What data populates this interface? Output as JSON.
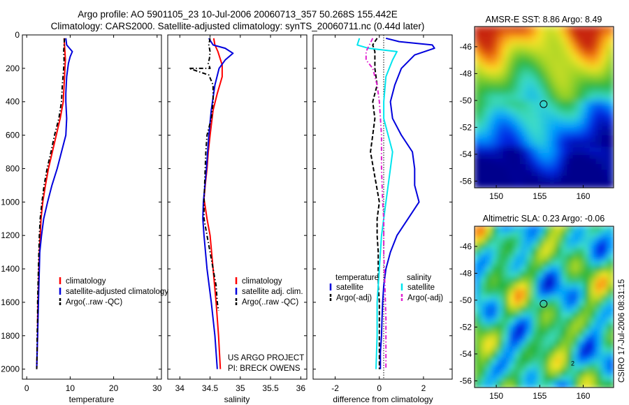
{
  "header": {
    "title_line1": "Argo profile: AO 5901105_23 10-Jul-2006 20060713_357 50.268S 155.442E",
    "title_line2": "Climatology: CARS2000. Satellite-adjusted climatology: synTS_20060711.nc (0.44d later)"
  },
  "colors": {
    "climatology": "#ff0000",
    "satellite": "#0000dd",
    "argo": "#000000",
    "sat_salinity": "#00e5ee",
    "argo_salinity": "#e020d0"
  },
  "credits": {
    "project": "US ARGO PROJECT",
    "pi": "PI: BRECK OWENS",
    "stamp": "CSIRO 17-Jul-2006 08:31:15"
  },
  "chart_data": [
    {
      "type": "line",
      "name": "temperature-profile",
      "xlabel": "temperature",
      "xlim": [
        -1,
        31
      ],
      "ylim": [
        2060,
        0
      ],
      "xticks": [
        0,
        10,
        20,
        30
      ],
      "yticks": [
        0,
        200,
        400,
        600,
        800,
        1000,
        1200,
        1400,
        1600,
        1800,
        2000
      ],
      "legend": {
        "position": "bottom-left",
        "labels": [
          "climatology",
          "satellite-adjusted climatology",
          "Argo(..raw -QC)"
        ]
      },
      "series": [
        {
          "name": "climatology",
          "color": "#ff0000",
          "style": "solid",
          "points": [
            [
              8.6,
              20
            ],
            [
              8.7,
              60
            ],
            [
              8.8,
              100
            ],
            [
              8.9,
              150
            ],
            [
              8.8,
              200
            ],
            [
              8.6,
              300
            ],
            [
              8.4,
              400
            ],
            [
              7.7,
              500
            ],
            [
              6.8,
              600
            ],
            [
              5.9,
              700
            ],
            [
              5.0,
              800
            ],
            [
              4.3,
              900
            ],
            [
              3.7,
              1000
            ],
            [
              3.3,
              1100
            ],
            [
              3.1,
              1200
            ],
            [
              2.9,
              1300
            ],
            [
              2.8,
              1400
            ],
            [
              2.7,
              1500
            ],
            [
              2.6,
              1600
            ],
            [
              2.5,
              1700
            ],
            [
              2.5,
              1800
            ],
            [
              2.4,
              1900
            ],
            [
              2.3,
              2000
            ]
          ]
        },
        {
          "name": "satellite-adjusted climatology",
          "color": "#0000dd",
          "style": "solid",
          "points": [
            [
              9.0,
              20
            ],
            [
              9.2,
              60
            ],
            [
              10.5,
              100
            ],
            [
              10.0,
              130
            ],
            [
              9.6,
              170
            ],
            [
              9.2,
              250
            ],
            [
              9.0,
              350
            ],
            [
              9.0,
              400
            ],
            [
              9.2,
              500
            ],
            [
              9.0,
              600
            ],
            [
              8.0,
              700
            ],
            [
              7.0,
              800
            ],
            [
              5.8,
              900
            ],
            [
              4.8,
              1000
            ],
            [
              3.9,
              1100
            ],
            [
              3.4,
              1200
            ],
            [
              3.0,
              1300
            ],
            [
              2.9,
              1400
            ],
            [
              2.8,
              1500
            ],
            [
              2.7,
              1600
            ],
            [
              2.6,
              1700
            ],
            [
              2.5,
              1800
            ],
            [
              2.4,
              1900
            ],
            [
              2.3,
              2000
            ]
          ]
        },
        {
          "name": "Argo(..raw -QC)",
          "color": "#000000",
          "style": "dashdot",
          "points": [
            [
              8.7,
              20
            ],
            [
              8.6,
              60
            ],
            [
              8.5,
              100
            ],
            [
              8.6,
              150
            ],
            [
              8.5,
              200
            ],
            [
              8.2,
              300
            ],
            [
              8.0,
              400
            ],
            [
              7.4,
              500
            ],
            [
              6.4,
              600
            ],
            [
              5.6,
              700
            ],
            [
              4.7,
              800
            ],
            [
              4.0,
              900
            ],
            [
              3.5,
              1000
            ],
            [
              3.1,
              1100
            ],
            [
              2.9,
              1200
            ],
            [
              2.8,
              1300
            ],
            [
              2.7,
              1400
            ],
            [
              2.6,
              1500
            ],
            [
              2.5,
              1600
            ],
            [
              2.5,
              1700
            ],
            [
              2.4,
              1800
            ],
            [
              2.4,
              1900
            ],
            [
              2.3,
              2000
            ]
          ]
        }
      ]
    },
    {
      "type": "line",
      "name": "salinity-profile",
      "xlabel": "salinity",
      "xlim": [
        33.8,
        36.1
      ],
      "ylim": [
        2060,
        0
      ],
      "xticks": [
        34,
        34.5,
        35,
        35.5,
        36
      ],
      "legend": {
        "position": "bottom-left",
        "labels": [
          "climatology",
          "satellite adj. clim.",
          "Argo(..raw -QC)"
        ]
      },
      "series": [
        {
          "name": "climatology",
          "color": "#ff0000",
          "style": "solid",
          "points": [
            [
              34.56,
              20
            ],
            [
              34.58,
              60
            ],
            [
              34.63,
              100
            ],
            [
              34.7,
              180
            ],
            [
              34.7,
              250
            ],
            [
              34.62,
              350
            ],
            [
              34.55,
              450
            ],
            [
              34.5,
              600
            ],
            [
              34.47,
              700
            ],
            [
              34.45,
              800
            ],
            [
              34.42,
              900
            ],
            [
              34.4,
              980
            ],
            [
              34.45,
              1100
            ],
            [
              34.5,
              1200
            ],
            [
              34.55,
              1400
            ],
            [
              34.6,
              1600
            ],
            [
              34.64,
              1800
            ],
            [
              34.67,
              2000
            ]
          ]
        },
        {
          "name": "satellite adj. clim.",
          "color": "#0000dd",
          "style": "solid",
          "points": [
            [
              34.48,
              20
            ],
            [
              34.55,
              60
            ],
            [
              34.75,
              80
            ],
            [
              34.88,
              110
            ],
            [
              34.75,
              150
            ],
            [
              34.65,
              200
            ],
            [
              34.58,
              300
            ],
            [
              34.52,
              450
            ],
            [
              34.48,
              600
            ],
            [
              34.44,
              800
            ],
            [
              34.39,
              1000
            ],
            [
              34.38,
              1100
            ],
            [
              34.4,
              1200
            ],
            [
              34.45,
              1400
            ],
            [
              34.52,
              1600
            ],
            [
              34.58,
              1800
            ],
            [
              34.62,
              2000
            ]
          ]
        },
        {
          "name": "Argo(..raw -QC)",
          "color": "#000000",
          "style": "dashdot",
          "points": [
            [
              34.5,
              20
            ],
            [
              34.48,
              60
            ],
            [
              34.5,
              100
            ],
            [
              34.49,
              140
            ],
            [
              34.47,
              170
            ],
            [
              34.5,
              200
            ],
            [
              34.15,
              200
            ],
            [
              34.48,
              240
            ],
            [
              34.55,
              300
            ],
            [
              34.55,
              400
            ],
            [
              34.52,
              500
            ],
            [
              34.45,
              600
            ],
            [
              34.43,
              700
            ],
            [
              34.42,
              800
            ],
            [
              34.4,
              1000
            ],
            [
              34.4,
              1100
            ],
            [
              34.45,
              1200
            ],
            [
              34.5,
              1300
            ],
            [
              34.55,
              1400
            ],
            [
              34.6,
              1500
            ],
            [
              34.62,
              1600
            ],
            [
              34.64,
              1650
            ]
          ]
        }
      ]
    },
    {
      "type": "line",
      "name": "difference-profile",
      "xlabel": "difference from climatology",
      "xlim": [
        -3,
        3.3
      ],
      "ylim": [
        2060,
        0
      ],
      "xticks": [
        -2,
        0,
        2
      ],
      "legend": {
        "position": "bottom",
        "groups": [
          {
            "header": "temperature",
            "labels": [
              "satellite",
              "Argo(-adj)"
            ]
          },
          {
            "header": "salinity",
            "labels": [
              "satellite",
              "Argo(-adj)"
            ]
          }
        ]
      },
      "series": [
        {
          "name": "temperature satellite",
          "color": "#0000dd",
          "style": "solid",
          "points": [
            [
              0.3,
              20
            ],
            [
              0.9,
              40
            ],
            [
              2.4,
              60
            ],
            [
              2.5,
              80
            ],
            [
              1.6,
              120
            ],
            [
              1.0,
              200
            ],
            [
              0.7,
              300
            ],
            [
              0.5,
              400
            ],
            [
              0.6,
              500
            ],
            [
              1.0,
              600
            ],
            [
              1.5,
              700
            ],
            [
              1.6,
              800
            ],
            [
              1.6,
              900
            ],
            [
              1.8,
              1000
            ],
            [
              1.3,
              1100
            ],
            [
              0.8,
              1200
            ],
            [
              0.5,
              1300
            ],
            [
              0.3,
              1400
            ],
            [
              0.2,
              1500
            ],
            [
              0.15,
              1600
            ],
            [
              0.12,
              1700
            ],
            [
              0.1,
              1800
            ],
            [
              0.05,
              1900
            ],
            [
              0.05,
              2000
            ]
          ]
        },
        {
          "name": "temperature Argo(-adj)",
          "color": "#000000",
          "style": "dashed",
          "points": [
            [
              -0.1,
              20
            ],
            [
              -0.3,
              60
            ],
            [
              -0.2,
              100
            ],
            [
              -0.2,
              200
            ],
            [
              -0.1,
              300
            ],
            [
              -0.3,
              400
            ],
            [
              -0.2,
              500
            ],
            [
              -0.3,
              600
            ],
            [
              -0.4,
              700
            ],
            [
              -0.2,
              850
            ],
            [
              0.0,
              1000
            ],
            [
              -0.1,
              1100
            ],
            [
              -0.1,
              1200
            ],
            [
              -0.05,
              1300
            ],
            [
              -0.05,
              1500
            ],
            [
              0.0,
              1600
            ],
            [
              0.0,
              1800
            ],
            [
              0.0,
              2000
            ]
          ]
        },
        {
          "name": "salinity satellite",
          "color": "#00e5ee",
          "style": "solid",
          "points": [
            [
              -0.9,
              20
            ],
            [
              -1.0,
              60
            ],
            [
              -0.5,
              80
            ],
            [
              0.8,
              100
            ],
            [
              0.6,
              150
            ],
            [
              0.3,
              250
            ],
            [
              0.2,
              400
            ],
            [
              0.2,
              500
            ],
            [
              0.4,
              600
            ],
            [
              0.6,
              700
            ],
            [
              0.5,
              800
            ],
            [
              0.3,
              1000
            ],
            [
              0.1,
              1200
            ],
            [
              0.0,
              1400
            ],
            [
              -0.1,
              1600
            ],
            [
              -0.1,
              1800
            ],
            [
              -0.15,
              2000
            ]
          ]
        },
        {
          "name": "salinity Argo(-adj)",
          "color": "#e020d0",
          "style": "dashdot",
          "points": [
            [
              -0.3,
              20
            ],
            [
              -0.6,
              100
            ],
            [
              -0.6,
              150
            ],
            [
              -0.3,
              200
            ],
            [
              -0.1,
              300
            ],
            [
              0.0,
              400
            ],
            [
              0.1,
              600
            ],
            [
              0.1,
              800
            ],
            [
              0.15,
              1000
            ],
            [
              0.2,
              1100
            ],
            [
              0.2,
              1300
            ],
            [
              0.25,
              1500
            ],
            [
              0.3,
              1700
            ],
            [
              0.3,
              1900
            ],
            [
              0.3,
              2000
            ]
          ]
        }
      ]
    },
    {
      "type": "heatmap",
      "name": "sst-map",
      "title": "AMSR-E SST: 8.86 Argo: 8.49",
      "xlim": [
        147.5,
        163.5
      ],
      "ylim": [
        -56.5,
        -44.5
      ],
      "xticks": [
        150,
        155,
        160
      ],
      "yticks": [
        -46,
        -48,
        -50,
        -52,
        -54,
        -56
      ],
      "argo_position": {
        "lon": 155.44,
        "lat": -50.27
      },
      "extra_marker": {
        "label": "",
        "lon": 158.8,
        "lat": -54.7
      }
    },
    {
      "type": "heatmap",
      "name": "sla-map",
      "title": "Altimetric SLA: 0.23 Argo: -0.06",
      "xlim": [
        147.5,
        163.5
      ],
      "ylim": [
        -56.5,
        -44.5
      ],
      "xticks": [
        150,
        155,
        160
      ],
      "yticks": [
        -46,
        -48,
        -50,
        -52,
        -54,
        -56
      ],
      "argo_position": {
        "lon": 155.44,
        "lat": -50.27
      },
      "extra_marker": {
        "label": "2",
        "lon": 158.8,
        "lat": -54.7
      }
    }
  ]
}
